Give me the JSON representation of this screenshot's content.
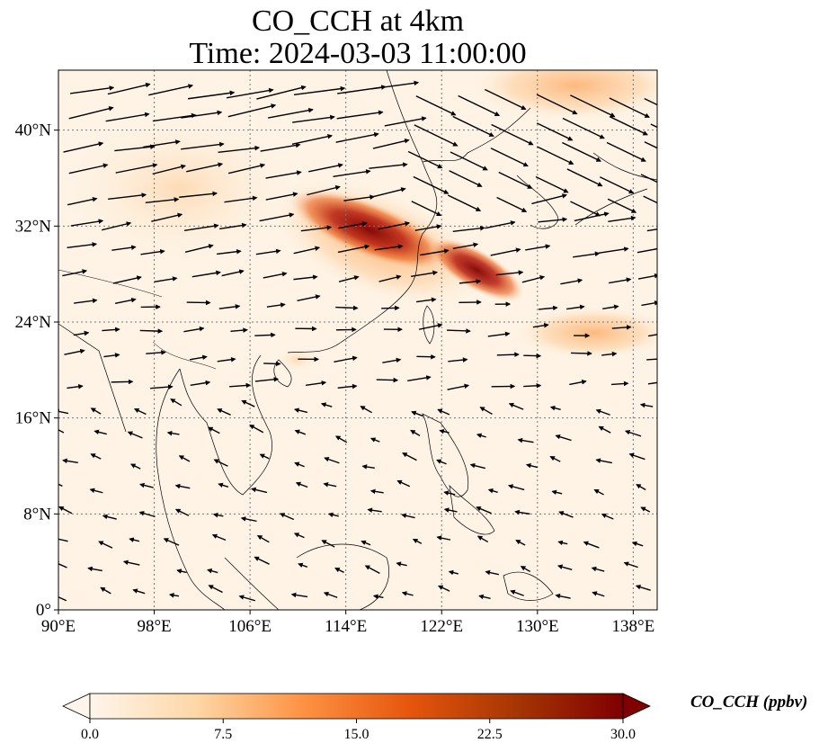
{
  "title": {
    "line1": "CO_CCH at 4km",
    "line2": "Time: 2024-03-03 11:00:00"
  },
  "map": {
    "lon_range": [
      90,
      140
    ],
    "lat_range": [
      0,
      45
    ],
    "lon_ticks": [
      {
        "value": 90,
        "label": "90°E"
      },
      {
        "value": 98,
        "label": "98°E"
      },
      {
        "value": 106,
        "label": "106°E"
      },
      {
        "value": 114,
        "label": "114°E"
      },
      {
        "value": 122,
        "label": "122°E"
      },
      {
        "value": 130,
        "label": "130°E"
      },
      {
        "value": 138,
        "label": "138°E"
      }
    ],
    "lat_ticks": [
      {
        "value": 0,
        "label": "0°"
      },
      {
        "value": 8,
        "label": "8°N"
      },
      {
        "value": 16,
        "label": "16°N"
      },
      {
        "value": 24,
        "label": "24°N"
      },
      {
        "value": 32,
        "label": "32°N"
      },
      {
        "value": 40,
        "label": "40°N"
      }
    ],
    "gridlines": "dotted"
  },
  "colorbar": {
    "label": "CO_CCH (ppbv)",
    "ticks": [
      "0.0",
      "7.5",
      "15.0",
      "22.5",
      "30.0"
    ],
    "range": [
      0,
      30
    ],
    "colormap": [
      "#fff5eb",
      "#fdd7a6",
      "#fd9243",
      "#e6550d",
      "#a63603",
      "#7f0000"
    ],
    "extend": "both"
  },
  "plumes": [
    {
      "name": "main-plume",
      "lon": 117,
      "lat": 31.5,
      "value": 28
    },
    {
      "name": "east-plume",
      "lon": 125,
      "lat": 28.5,
      "value": 26
    },
    {
      "name": "northeast-plume",
      "lon": 136,
      "lat": 44,
      "value": 10
    },
    {
      "name": "east-tail-plume",
      "lon": 133,
      "lat": 23.5,
      "value": 9
    }
  ]
}
